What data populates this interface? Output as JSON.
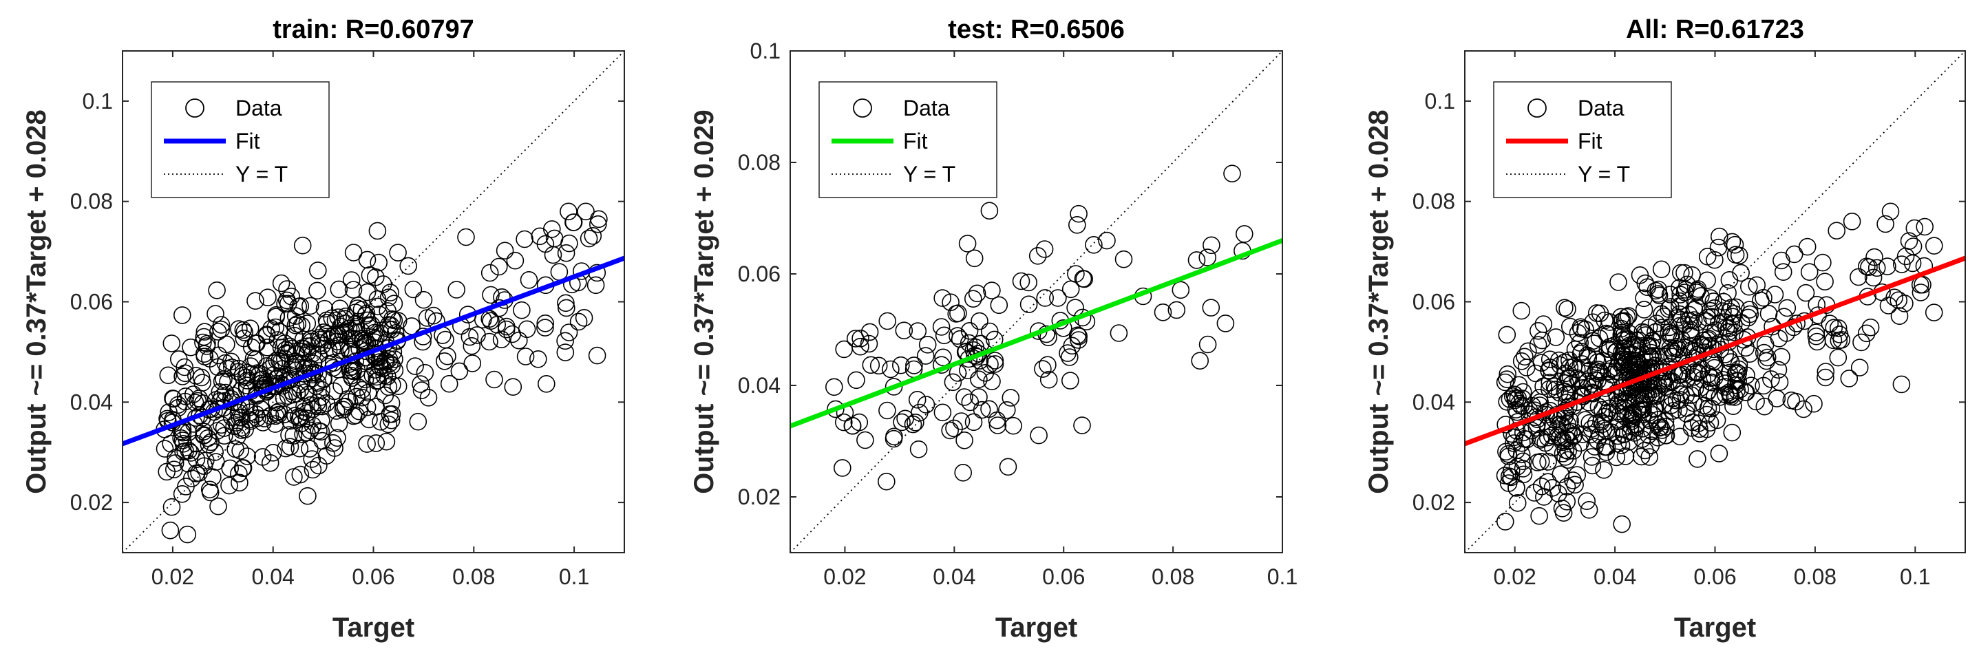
{
  "chart_data": [
    {
      "type": "scatter",
      "title": "train: R=0.60797",
      "xlabel": "Target",
      "ylabel": "Output ~= 0.37*Target + 0.028",
      "xlim": [
        0.01,
        0.11
      ],
      "ylim": [
        0.01,
        0.11
      ],
      "xticks": [
        0.02,
        0.04,
        0.06,
        0.08,
        0.1
      ],
      "xtick_labels": [
        "0.02",
        "0.04",
        "0.06",
        "0.08",
        "0.1"
      ],
      "yticks": [
        0.02,
        0.04,
        0.06,
        0.08,
        0.1
      ],
      "ytick_labels": [
        "0.02",
        "0.04",
        "0.06",
        "0.08",
        "0.1"
      ],
      "grid": false,
      "legend": {
        "placement": "top-left",
        "entries": [
          {
            "label": "Data",
            "marker": "circle",
            "color": "#000000"
          },
          {
            "label": "Fit",
            "style": "solid",
            "color": "#0000ff"
          },
          {
            "label": "Y = T",
            "style": "dotted",
            "color": "#000000"
          }
        ]
      },
      "fit": {
        "slope": 0.37,
        "intercept": 0.028,
        "color": "#0000ff"
      },
      "identity_line": true,
      "points_summary": "≈600 open circles"
    },
    {
      "type": "scatter",
      "title": "test: R=0.6506",
      "xlabel": "Target",
      "ylabel": "Output ~= 0.37*Target + 0.029",
      "xlim": [
        0.01,
        0.1
      ],
      "ylim": [
        0.01,
        0.1
      ],
      "xticks": [
        0.02,
        0.04,
        0.06,
        0.08,
        0.1
      ],
      "xtick_labels": [
        "0.02",
        "0.04",
        "0.06",
        "0.08",
        "0.1"
      ],
      "yticks": [
        0.02,
        0.04,
        0.06,
        0.08,
        0.1
      ],
      "ytick_labels": [
        "0.02",
        "0.04",
        "0.06",
        "0.08",
        "0.1"
      ],
      "grid": false,
      "legend": {
        "placement": "top-left",
        "entries": [
          {
            "label": "Data",
            "marker": "circle",
            "color": "#000000"
          },
          {
            "label": "Fit",
            "style": "solid",
            "color": "#00e600"
          },
          {
            "label": "Y = T",
            "style": "dotted",
            "color": "#000000"
          }
        ]
      },
      "fit": {
        "slope": 0.37,
        "intercept": 0.029,
        "color": "#00e600"
      },
      "identity_line": true,
      "points_summary": "≈150 open circles"
    },
    {
      "type": "scatter",
      "title": "All: R=0.61723",
      "xlabel": "Target",
      "ylabel": "Output ~= 0.37*Target + 0.028",
      "xlim": [
        0.01,
        0.11
      ],
      "ylim": [
        0.01,
        0.11
      ],
      "xticks": [
        0.02,
        0.04,
        0.06,
        0.08,
        0.1
      ],
      "xtick_labels": [
        "0.02",
        "0.04",
        "0.06",
        "0.08",
        "0.1"
      ],
      "yticks": [
        0.02,
        0.04,
        0.06,
        0.08,
        0.1
      ],
      "ytick_labels": [
        "0.02",
        "0.04",
        "0.06",
        "0.08",
        "0.1"
      ],
      "grid": false,
      "legend": {
        "placement": "top-left",
        "entries": [
          {
            "label": "Data",
            "marker": "circle",
            "color": "#000000"
          },
          {
            "label": "Fit",
            "style": "solid",
            "color": "#ff0000"
          },
          {
            "label": "Y = T",
            "style": "dotted",
            "color": "#000000"
          }
        ]
      },
      "fit": {
        "slope": 0.37,
        "intercept": 0.028,
        "color": "#ff0000"
      },
      "identity_line": true,
      "points_summary": "≈750 open circles"
    }
  ]
}
